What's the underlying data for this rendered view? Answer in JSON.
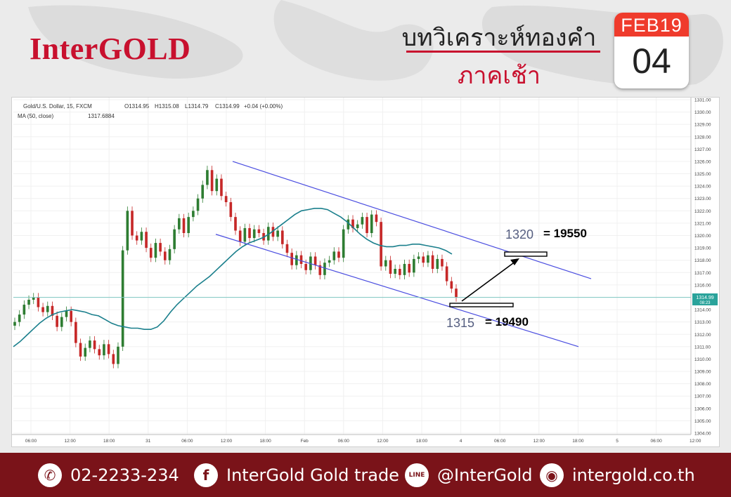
{
  "brand": {
    "logo": "InterGOLD"
  },
  "header": {
    "title": "บทวิเคราะห์ทองคำ",
    "subtitle": "ภาคเช้า"
  },
  "calendar": {
    "month": "FEB19",
    "day": "04"
  },
  "colors": {
    "brand_red": "#c8102e",
    "footer_bg": "#7a1319",
    "up": "#2e7d32",
    "down": "#c62828",
    "channel": "#4a4de0",
    "ma": "#1a7f8c"
  },
  "chart_info": {
    "symbol_line": "Gold/U.S. Dollar, 15, FXCM",
    "ohlc": {
      "o": "O1314.95",
      "h": "H1315.08",
      "l": "L1314.79",
      "c": "C1314.99",
      "chg": "+0.04 (+0.00%)"
    },
    "ma_label": "MA (50, close)",
    "ma_value": "1317.6884",
    "price_tag": "1314.99",
    "time_tag": "08:23"
  },
  "chart_data": {
    "type": "line",
    "title": "",
    "xlabel": "",
    "ylabel": "",
    "ylim": [
      1303.5,
      1331.2
    ],
    "y_ticks": [
      "1331.00",
      "1330.00",
      "1329.00",
      "1328.00",
      "1327.00",
      "1326.00",
      "1325.00",
      "1324.00",
      "1323.00",
      "1322.00",
      "1321.00",
      "1320.00",
      "1319.00",
      "1318.00",
      "1317.00",
      "1316.00",
      "1315.00",
      "1314.00",
      "1313.00",
      "1312.00",
      "1311.00",
      "1310.00",
      "1309.00",
      "1308.00",
      "1307.00",
      "1306.00",
      "1305.00",
      "1304.00"
    ],
    "x_ticks": [
      "06:00",
      "12:00",
      "18:00",
      "31",
      "06:00",
      "12:00",
      "18:00",
      "Feb",
      "06:00",
      "12:00",
      "18:00",
      "4",
      "06:00",
      "12:00",
      "18:00",
      "5",
      "06:00",
      "12:00"
    ],
    "last_price": 1314.99,
    "price_series": [
      1313.0,
      1313.6,
      1314.4,
      1314.8,
      1315.0,
      1314.2,
      1313.8,
      1314.3,
      1313.5,
      1312.6,
      1313.4,
      1313.9,
      1313.0,
      1311.3,
      1310.2,
      1310.9,
      1311.5,
      1310.8,
      1310.3,
      1311.2,
      1310.4,
      1309.6,
      1311.0,
      1318.8,
      1322.0,
      1320.0,
      1319.6,
      1320.3,
      1319.0,
      1318.2,
      1319.4,
      1318.7,
      1318.0,
      1318.9,
      1320.5,
      1321.4,
      1320.2,
      1321.5,
      1322.0,
      1323.0,
      1324.1,
      1325.3,
      1323.6,
      1324.6,
      1323.2,
      1322.7,
      1321.5,
      1320.4,
      1319.5,
      1320.6,
      1319.8,
      1320.5,
      1320.2,
      1319.6,
      1320.7,
      1319.9,
      1320.4,
      1319.3,
      1318.6,
      1317.6,
      1318.4,
      1317.7,
      1317.2,
      1318.3,
      1317.6,
      1316.8,
      1317.8,
      1318.0,
      1318.7,
      1318.2,
      1320.5,
      1321.3,
      1320.6,
      1320.9,
      1321.5,
      1320.2,
      1321.7,
      1321.1,
      1317.5,
      1318.0,
      1316.9,
      1317.3,
      1316.8,
      1317.7,
      1317.0,
      1318.1,
      1318.3,
      1317.8,
      1318.4,
      1317.3,
      1318.1,
      1317.5,
      1316.3,
      1315.7,
      1314.99
    ],
    "series": [
      {
        "name": "MA (50, close)",
        "values": [
          1311.0,
          1311.4,
          1311.9,
          1312.4,
          1312.9,
          1313.3,
          1313.6,
          1313.8,
          1313.9,
          1314.0,
          1313.9,
          1313.8,
          1313.6,
          1313.5,
          1313.2,
          1312.9,
          1312.7,
          1312.6,
          1312.5,
          1312.5,
          1312.4,
          1312.4,
          1312.6,
          1313.1,
          1313.8,
          1314.4,
          1314.9,
          1315.4,
          1315.9,
          1316.3,
          1316.7,
          1317.2,
          1317.7,
          1318.2,
          1318.7,
          1319.1,
          1319.4,
          1319.6,
          1319.8,
          1320.1,
          1320.5,
          1320.9,
          1321.3,
          1321.7,
          1322.0,
          1322.1,
          1322.2,
          1322.2,
          1322.1,
          1321.8,
          1321.5,
          1321.1,
          1320.6,
          1320.1,
          1319.7,
          1319.4,
          1319.2,
          1319.1,
          1319.1,
          1319.2,
          1319.2,
          1319.3,
          1319.3,
          1319.2,
          1319.1,
          1319.0,
          1318.8,
          1318.5
        ]
      }
    ],
    "channel_upper": [
      [
        1326.0,
        1316.5
      ]
    ],
    "channel_lower": [
      [
        1320.1,
        1311.0
      ]
    ],
    "annotations": [
      {
        "price": "1320",
        "text": "= 19550"
      },
      {
        "price": "1315",
        "text": "= 19490"
      }
    ]
  },
  "footer": {
    "phone": "02-2233-234",
    "facebook": "InterGold Gold trade",
    "line": "@InterGold",
    "website": "intergold.co.th",
    "phone_icon": "phone-icon",
    "facebook_icon": "facebook-icon",
    "line_icon": "line-icon",
    "web_icon": "globe-icon"
  }
}
